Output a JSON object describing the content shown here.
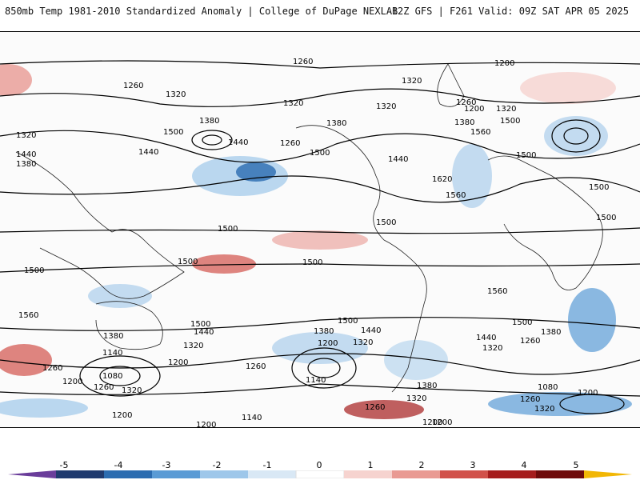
{
  "header": {
    "title_left": "850mb Temp 1981-2010 Standardized Anomaly | College of DuPage NEXLAB",
    "title_right": "12Z GFS | F261 Valid: 09Z SAT APR 05 2025"
  },
  "map": {
    "contour_labels": [
      "1260",
      "1200",
      "1320",
      "1260",
      "1320",
      "1320",
      "1380",
      "1320",
      "1260",
      "1200",
      "1320",
      "1380",
      "1320",
      "1440",
      "1380",
      "1500",
      "1440",
      "1380",
      "1440",
      "1260",
      "1500",
      "1500",
      "1560",
      "1440",
      "1620",
      "1560",
      "1500",
      "1500",
      "1500",
      "1500",
      "1500",
      "1500",
      "1500",
      "1500",
      "1560",
      "1560",
      "1500",
      "1440",
      "1380",
      "1320",
      "1200",
      "1260",
      "1140",
      "1080",
      "1200",
      "1260",
      "1320",
      "1200",
      "1140",
      "1200",
      "1500",
      "1440",
      "1380",
      "1320",
      "1200",
      "1260",
      "1140",
      "1380",
      "1320",
      "1260",
      "1200",
      "1320",
      "1260",
      "1500",
      "1440",
      "1380",
      "1320",
      "1260",
      "1080",
      "1200",
      "1200"
    ]
  },
  "colorbar": {
    "ticks": [
      "-5",
      "-4",
      "-3",
      "-2",
      "-1",
      "0",
      "1",
      "2",
      "3",
      "4",
      "5"
    ],
    "colors": [
      "#6a3d9a",
      "#1f3a6e",
      "#2b6cb0",
      "#5a9bd5",
      "#9ec7ea",
      "#d9e8f5",
      "#ffffff",
      "#f6d3cf",
      "#e99a93",
      "#d1514a",
      "#a51c1c",
      "#6e0a0a",
      "#f2b705"
    ]
  }
}
